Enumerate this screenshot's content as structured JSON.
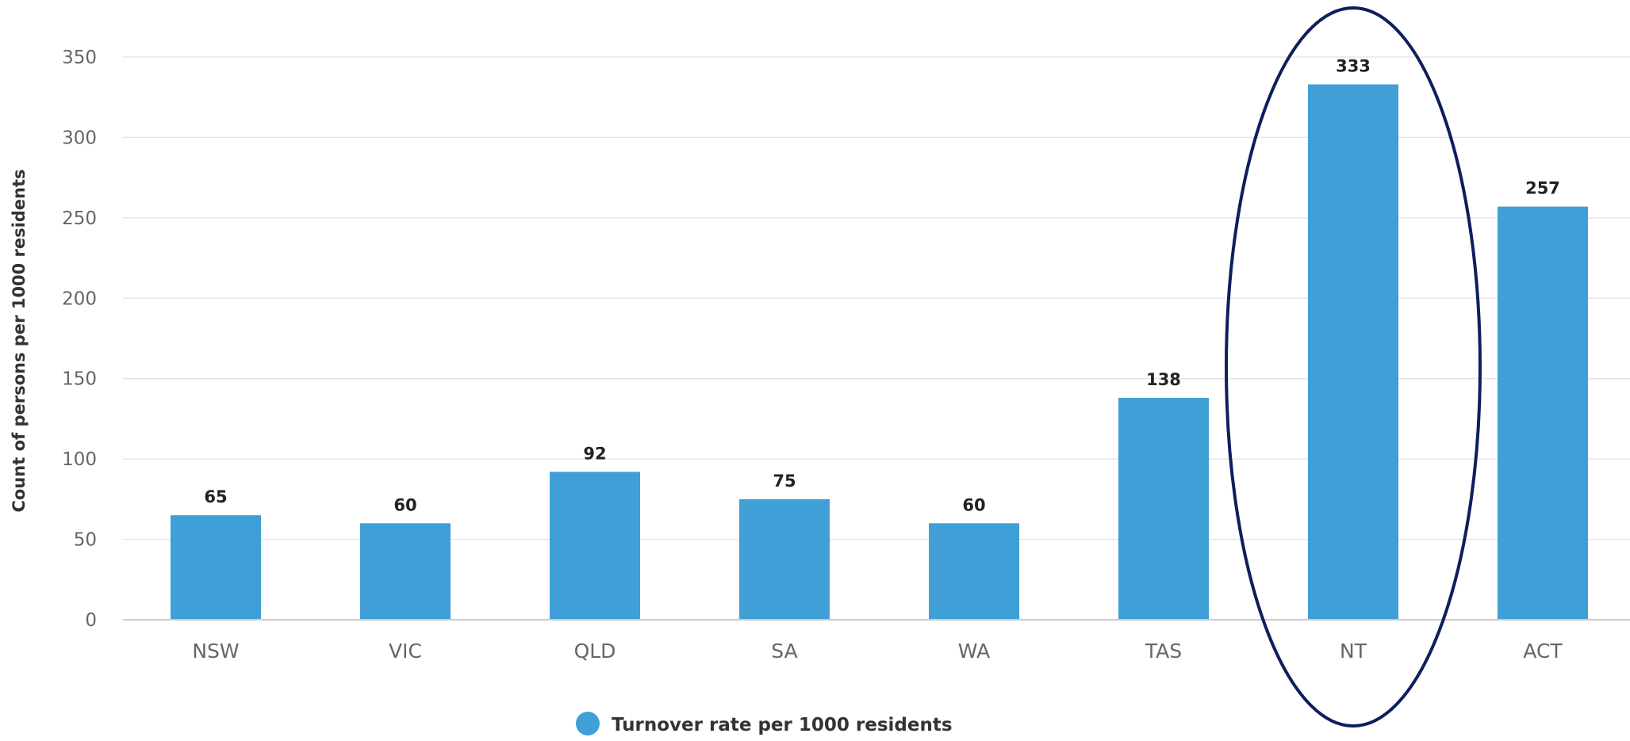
{
  "chart_data": {
    "type": "bar",
    "categories": [
      "NSW",
      "VIC",
      "QLD",
      "SA",
      "WA",
      "TAS",
      "NT",
      "ACT"
    ],
    "series": [
      {
        "name": "Turnover rate per 1000 residents",
        "values": [
          65,
          60,
          92,
          75,
          60,
          138,
          333,
          257
        ],
        "color": "#3f9fd6"
      }
    ],
    "data_labels": [
      "65",
      "60",
      "92",
      "75",
      "60",
      "138",
      "333",
      "257"
    ],
    "ylabel": "Count of persons per 1000 residents",
    "xlabel": "",
    "ylim": [
      0,
      350
    ],
    "yticks": [
      0,
      50,
      100,
      150,
      200,
      250,
      300,
      350
    ],
    "ytick_labels": [
      "0",
      "50",
      "100",
      "150",
      "200",
      "250",
      "300",
      "350"
    ],
    "grid": true,
    "legend": {
      "position": "bottom-center",
      "entries": [
        "Turnover rate per 1000 residents"
      ]
    },
    "highlight": {
      "category": "NT",
      "shape": "ellipse",
      "color": "#0d1f5c"
    },
    "colors": {
      "bar": "#3f9fd6",
      "grid": "#e6e6e6",
      "axis": "#cccccc",
      "highlight": "#0d1f5c"
    }
  }
}
